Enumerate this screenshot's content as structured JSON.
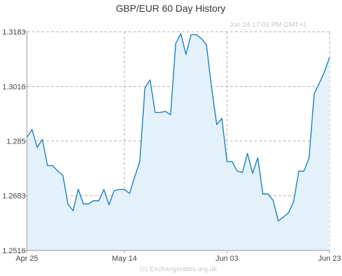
{
  "chart_data": {
    "type": "area",
    "title": "GBP/EUR  60 Day History",
    "timestamp": "Jun 24  17:03 PM GMT+1",
    "credit": "(c) Exchangerates.org.uk",
    "xlabel": "",
    "ylabel": "",
    "ylim": [
      1.2516,
      1.3183
    ],
    "y_ticks": [
      {
        "value": 1.2516,
        "label": "1.2516"
      },
      {
        "value": 1.2683,
        "label": "1.2683"
      },
      {
        "value": 1.285,
        "label": "1.285"
      },
      {
        "value": 1.3016,
        "label": "1.3016"
      },
      {
        "value": 1.3183,
        "label": "1.3183"
      }
    ],
    "x_ticks": [
      {
        "index": 0,
        "label": "Apr 25"
      },
      {
        "index": 19,
        "label": "May 14"
      },
      {
        "index": 39,
        "label": "Jun 03"
      },
      {
        "index": 59,
        "label": "Jun 23"
      }
    ],
    "grid": true,
    "line_color": "#1a80c0",
    "fill_color": "#e4f1fa",
    "grid_color": "#b0b0b0",
    "series": [
      {
        "values": [
          1.2861,
          1.2885,
          1.283,
          1.2855,
          1.2775,
          1.2775,
          1.2758,
          1.2745,
          1.2657,
          1.2637,
          1.2703,
          1.2658,
          1.2658,
          1.2668,
          1.2667,
          1.2702,
          1.2655,
          1.2699,
          1.2702,
          1.2702,
          1.269,
          1.274,
          1.2787,
          1.3012,
          1.3036,
          1.2937,
          1.2937,
          1.294,
          1.293,
          1.3147,
          1.3177,
          1.3114,
          1.3174,
          1.3174,
          1.3162,
          1.3143,
          1.3012,
          1.29,
          1.2919,
          1.2787,
          1.2787,
          1.2758,
          1.2754,
          1.2812,
          1.2751,
          1.2799,
          1.2688,
          1.2688,
          1.2669,
          1.2606,
          1.2618,
          1.2631,
          1.2665,
          1.2758,
          1.2758,
          1.2798,
          1.2994,
          1.3026,
          1.3061,
          1.3105
        ]
      }
    ]
  }
}
